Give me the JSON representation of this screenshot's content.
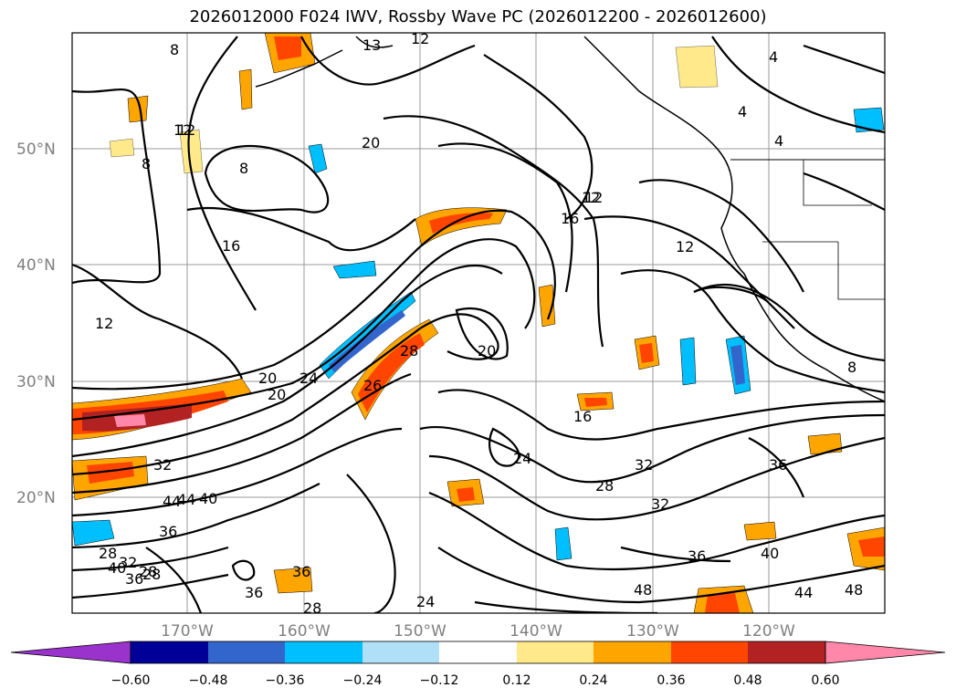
{
  "title": "2026012000 F024 IWV, Rossby Wave PC (2026012200 - 2026012600)",
  "map": {
    "lat_labels": [
      "50°N",
      "40°N",
      "30°N",
      "20°N"
    ],
    "lon_labels": [
      "170°W",
      "160°W",
      "150°W",
      "140°W",
      "130°W",
      "120°W"
    ],
    "contour_labels": [
      "8",
      "13",
      "12",
      "4",
      "4",
      "8",
      "12",
      "20",
      "8",
      "4",
      "16",
      "12",
      "16",
      "12",
      "12",
      "20",
      "20",
      "20",
      "24",
      "26",
      "28",
      "16",
      "32",
      "24",
      "32",
      "44",
      "40",
      "44",
      "36",
      "36",
      "28",
      "28",
      "32",
      "36",
      "36",
      "28",
      "24",
      "28",
      "32",
      "36",
      "48",
      "40",
      "44",
      "48",
      "8",
      "12",
      "36",
      "12",
      "28",
      "40"
    ],
    "colors": {
      "neg_purple": "#9933cc",
      "neg_navy": "#000099",
      "neg_blue": "#3366cc",
      "neg_cyan": "#00bfff",
      "neg_lightblue": "#b0e0f8",
      "pos_yellow": "#ffe98a",
      "pos_orange": "#ffa500",
      "pos_redorange": "#ff4500",
      "pos_brown": "#b22222",
      "pos_pink": "#ff88aa"
    }
  },
  "colorbar": {
    "labels": [
      "−0.60",
      "−0.48",
      "−0.36",
      "−0.24",
      "−0.12",
      "0.12",
      "0.24",
      "0.36",
      "0.48",
      "0.60"
    ],
    "colors": [
      "#9933cc",
      "#000099",
      "#3366cc",
      "#00bfff",
      "#b0e0f8",
      "#ffffff",
      "#ffe98a",
      "#ffa500",
      "#ff4500",
      "#b22222",
      "#ff88aa"
    ]
  }
}
